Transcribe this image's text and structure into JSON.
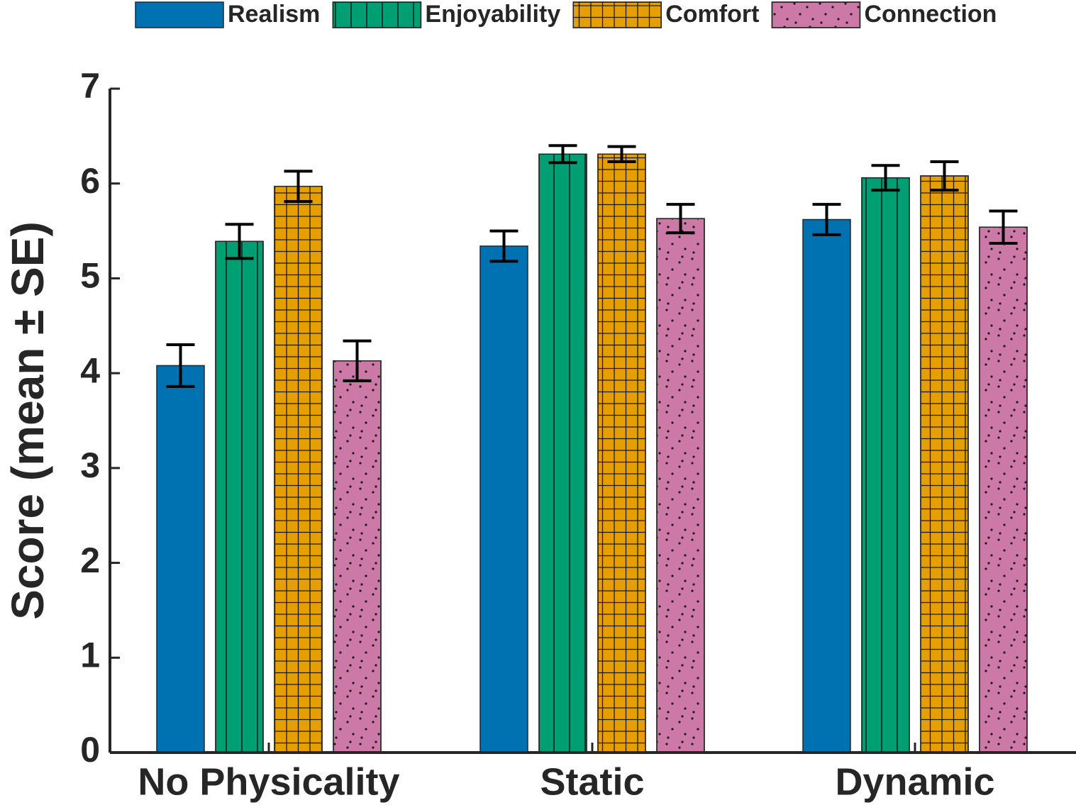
{
  "chart_data": {
    "type": "bar",
    "ylabel": "Score (mean ± SE)",
    "categories": [
      "No Physicality",
      "Static",
      "Dynamic"
    ],
    "ylim": [
      0,
      7
    ],
    "yticks": [
      0,
      1,
      2,
      3,
      4,
      5,
      6,
      7
    ],
    "legend": "top",
    "series": [
      {
        "name": "Realism",
        "color": "#0072b2",
        "pattern": "none",
        "values": [
          4.08,
          5.34,
          5.62
        ],
        "errors": [
          0.22,
          0.16,
          0.16
        ]
      },
      {
        "name": "Enjoyability",
        "color": "#009e73",
        "pattern": "vertical-lines",
        "values": [
          5.39,
          6.31,
          6.06
        ],
        "errors": [
          0.18,
          0.09,
          0.13
        ]
      },
      {
        "name": "Comfort",
        "color": "#e69f00",
        "pattern": "grid",
        "values": [
          5.97,
          6.31,
          6.08
        ],
        "errors": [
          0.16,
          0.08,
          0.15
        ]
      },
      {
        "name": "Connection",
        "color": "#cc79a7",
        "pattern": "dots",
        "values": [
          4.13,
          5.63,
          5.54
        ],
        "errors": [
          0.21,
          0.15,
          0.17
        ]
      }
    ]
  }
}
